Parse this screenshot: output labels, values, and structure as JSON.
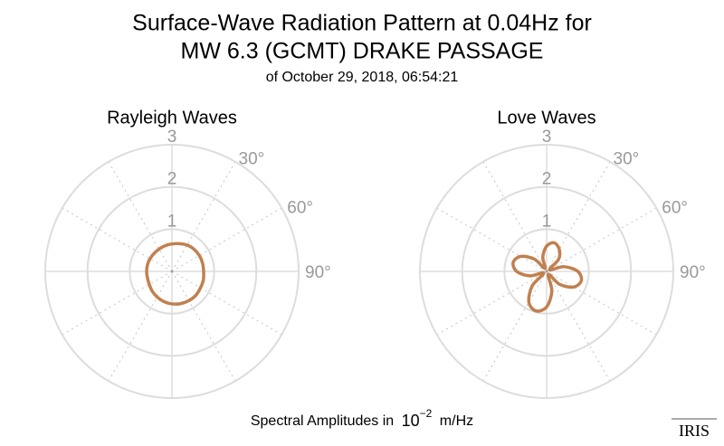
{
  "title": [
    "Surface-Wave Radiation Pattern at 0.04Hz for",
    "MW 6.3 (GCMT) DRAKE PASSAGE"
  ],
  "subtitle": "of October 29, 2018, 06:54:21",
  "axis_label": {
    "text": "Spectral Amplitudes in",
    "base": "10",
    "exponent": "−2",
    "unit": "m/Hz"
  },
  "logo": "IRIS",
  "chart_data": [
    {
      "type": "polar",
      "title": "Rayleigh Waves",
      "color": "#c0804f",
      "rlim": [
        0,
        3
      ],
      "rticks": [
        1,
        2,
        3
      ],
      "thetaticks": [
        {
          "value": 30,
          "label": "30°"
        },
        {
          "value": 60,
          "label": "60°"
        },
        {
          "value": 90,
          "label": "90°"
        }
      ],
      "theta": [
        0,
        15,
        30,
        45,
        60,
        75,
        90,
        105,
        120,
        135,
        150,
        165,
        180,
        195,
        210,
        225,
        240,
        255,
        270,
        285,
        300,
        315,
        330,
        345
      ],
      "values": [
        0.65,
        0.68,
        0.72,
        0.74,
        0.75,
        0.75,
        0.75,
        0.77,
        0.78,
        0.8,
        0.8,
        0.79,
        0.77,
        0.74,
        0.7,
        0.66,
        0.62,
        0.6,
        0.6,
        0.6,
        0.6,
        0.6,
        0.61,
        0.63
      ]
    },
    {
      "type": "polar",
      "title": "Love Waves",
      "color": "#c0804f",
      "rlim": [
        0,
        3
      ],
      "rticks": [
        1,
        2,
        3
      ],
      "thetaticks": [
        {
          "value": 30,
          "label": "30°"
        },
        {
          "value": 60,
          "label": "60°"
        },
        {
          "value": 90,
          "label": "90°"
        }
      ],
      "theta": [
        0,
        15,
        30,
        45,
        60,
        75,
        90,
        105,
        120,
        135,
        150,
        165,
        180,
        195,
        210,
        225,
        240,
        255,
        270,
        285,
        300,
        315,
        330,
        345
      ],
      "values": [
        0.6,
        0.7,
        0.6,
        0.4,
        0.08,
        0.43,
        0.74,
        0.85,
        0.74,
        0.43,
        0.08,
        0.48,
        0.84,
        0.97,
        0.84,
        0.48,
        0.08,
        0.41,
        0.71,
        0.82,
        0.71,
        0.41,
        0.08,
        0.35
      ]
    }
  ]
}
